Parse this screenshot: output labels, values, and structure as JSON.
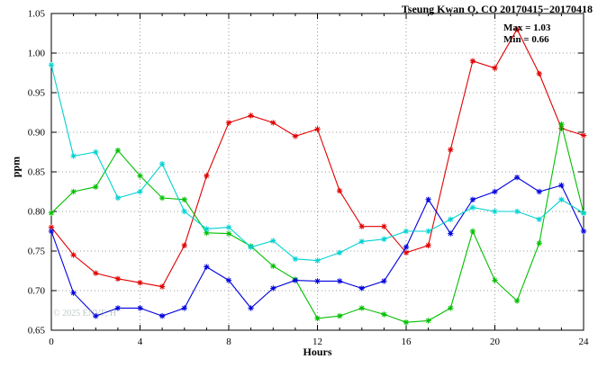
{
  "chart_data": {
    "type": "line",
    "title": "Tseung Kwan O, CO 20170415−20170418",
    "xlabel": "Hours",
    "ylabel": "ppm",
    "xlim": [
      0,
      24
    ],
    "ylim": [
      0.65,
      1.05
    ],
    "grid": true,
    "legend": "none",
    "annotations": {
      "max": "Max = 1.03",
      "min": "Min = 0.66"
    },
    "xticks": {
      "values": [
        0,
        4,
        8,
        12,
        16,
        20,
        24
      ],
      "labels": [
        "0",
        "4",
        "8",
        "12",
        "16",
        "20",
        "24"
      ]
    },
    "yticks": {
      "values": [
        0.65,
        0.7,
        0.75,
        0.8,
        0.85,
        0.9,
        0.95,
        1.0,
        1.05
      ],
      "labels": [
        "0.65",
        "0.70",
        "0.75",
        "0.80",
        "0.85",
        "0.90",
        "0.95",
        "1.00",
        "1.05"
      ]
    },
    "x": [
      0,
      1,
      2,
      3,
      4,
      5,
      6,
      7,
      8,
      9,
      10,
      11,
      12,
      13,
      14,
      15,
      16,
      17,
      18,
      19,
      20,
      21,
      22,
      23,
      24
    ],
    "series": [
      {
        "name": "series-red",
        "color": "#e00000",
        "values": [
          0.78,
          0.745,
          0.722,
          0.715,
          0.71,
          0.705,
          0.757,
          0.845,
          0.912,
          0.921,
          0.912,
          0.895,
          0.904,
          0.826,
          0.781,
          0.781,
          0.748,
          0.757,
          0.878,
          0.99,
          0.981,
          1.03,
          0.974,
          0.905,
          0.896
        ]
      },
      {
        "name": "series-green",
        "color": "#00c000",
        "values": [
          0.798,
          0.825,
          0.831,
          0.877,
          0.845,
          0.817,
          0.815,
          0.773,
          0.772,
          0.756,
          0.731,
          0.714,
          0.665,
          0.668,
          0.678,
          0.67,
          0.66,
          0.662,
          0.678,
          0.775,
          0.713,
          0.687,
          0.76,
          0.91,
          0.798
        ]
      },
      {
        "name": "series-blue",
        "color": "#0000dd",
        "values": [
          0.775,
          0.697,
          0.668,
          0.678,
          0.678,
          0.668,
          0.678,
          0.73,
          0.713,
          0.678,
          0.703,
          0.713,
          0.712,
          0.712,
          0.703,
          0.712,
          0.755,
          0.815,
          0.772,
          0.815,
          0.825,
          0.843,
          0.825,
          0.833,
          0.775
        ]
      },
      {
        "name": "series-cyan",
        "color": "#00d2d2",
        "values": [
          0.985,
          0.87,
          0.875,
          0.817,
          0.825,
          0.86,
          0.8,
          0.778,
          0.78,
          0.755,
          0.763,
          0.74,
          0.738,
          0.748,
          0.762,
          0.765,
          0.775,
          0.775,
          0.79,
          0.805,
          0.8,
          0.8,
          0.79,
          0.815,
          0.798
        ]
      }
    ]
  },
  "watermark": "© 2025 ENVF, H"
}
